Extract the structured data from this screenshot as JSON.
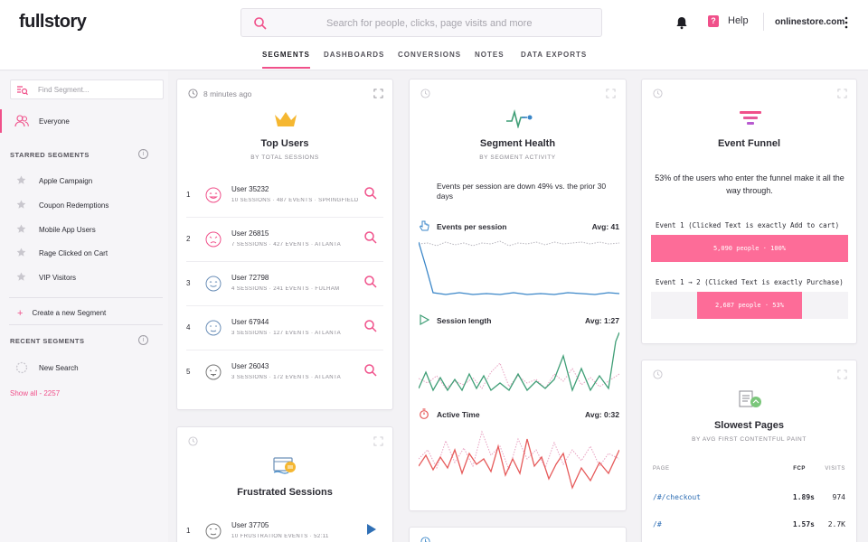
{
  "header": {
    "logo": "fullstory",
    "search_placeholder": "Search for people, clicks, page visits and more",
    "help": "Help",
    "help_icon": "?",
    "account": "onlinestore.com",
    "accent": "#f0508a"
  },
  "tabs": [
    {
      "label": "SEGMENTS",
      "active": true
    },
    {
      "label": "DASHBOARDS"
    },
    {
      "label": "CONVERSIONS"
    },
    {
      "label": "NOTES"
    },
    {
      "label": "DATA EXPORTS"
    }
  ],
  "sidebar": {
    "find_placeholder": "Find Segment...",
    "everyone": "Everyone",
    "starred_title": "STARRED SEGMENTS",
    "starred": [
      "Apple Campaign",
      "Coupon Redemptions",
      "Mobile App Users",
      "Rage Clicked on Cart",
      "VIP Visitors"
    ],
    "create": "Create a new Segment",
    "create_icon": "+",
    "recent_title": "RECENT SEGMENTS",
    "recent": [
      "New Search"
    ],
    "show_all": "Show all - 2257",
    "info_icon": "i"
  },
  "top_users": {
    "ago": "8 minutes ago",
    "title": "Top Users",
    "subtitle": "BY TOTAL SESSIONS",
    "users": [
      {
        "rank": "1",
        "name": "User 35232",
        "meta": "10 SESSIONS · 487 EVENTS · SPRINGFIELD",
        "face": "#f0508a"
      },
      {
        "rank": "2",
        "name": "User 26815",
        "meta": "7 SESSIONS · 427 EVENTS · ATLANTA",
        "face": "#f0508a"
      },
      {
        "rank": "3",
        "name": "User 72798",
        "meta": "4 SESSIONS · 241 EVENTS · FULHAM",
        "face": "#6b8fb8"
      },
      {
        "rank": "4",
        "name": "User 67944",
        "meta": "3 SESSIONS · 127 EVENTS · ATLANTA",
        "face": "#6b8fb8"
      },
      {
        "rank": "5",
        "name": "User 26043",
        "meta": "3 SESSIONS · 172 EVENTS · ATLANTA",
        "face": "#777"
      }
    ]
  },
  "frustrated": {
    "title": "Frustrated Sessions",
    "rows": [
      {
        "rank": "1",
        "name": "User 37705",
        "meta": "10 FRUSTRATION EVENTS · 52:11"
      }
    ]
  },
  "health": {
    "title": "Segment Health",
    "subtitle": "BY SEGMENT ACTIVITY",
    "desc": "Events per session are down 49% vs. the prior 30 days",
    "metrics": [
      {
        "name": "Events per session",
        "avg": "Avg: 41",
        "color": "#3a86c8",
        "icon": "hand-pointer-icon"
      },
      {
        "name": "Session length",
        "avg": "Avg: 1:27",
        "color": "#3f9e76",
        "icon": "play-icon"
      },
      {
        "name": "Active Time",
        "avg": "Avg: 0:32",
        "color": "#e65a5a",
        "icon": "stopwatch-icon"
      }
    ]
  },
  "funnel": {
    "title": "Event Funnel",
    "desc": "53% of the users who enter the funnel make it all the way through.",
    "steps": [
      {
        "label": "Event 1 (Clicked Text is exactly Add to cart)",
        "bar": "5,090 people · 100%",
        "fraction": 1.0
      },
      {
        "label": "Event 1 → 2 (Clicked Text is exactly Purchase)",
        "bar": "2,687 people · 53%",
        "fraction": 0.53
      }
    ]
  },
  "slowest": {
    "title": "Slowest Pages",
    "subtitle": "BY AVG FIRST CONTENTFUL PAINT",
    "col_page": "PAGE",
    "col_fcp": "FCP",
    "col_visits": "VISITS",
    "rows": [
      {
        "page": "/#/checkout",
        "fcp": "1.89s",
        "visits": "974"
      },
      {
        "page": "/#",
        "fcp": "1.57s",
        "visits": "2.7K"
      }
    ]
  }
}
